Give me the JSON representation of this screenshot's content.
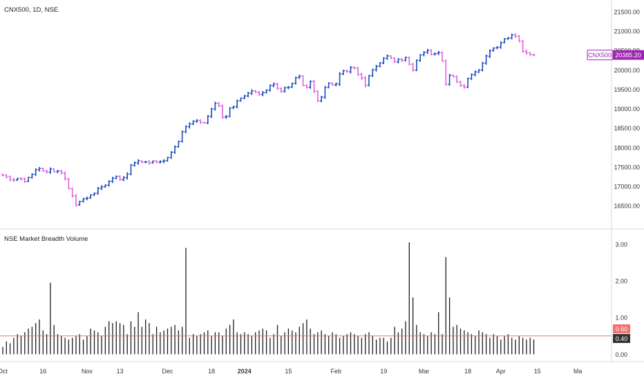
{
  "main_pane": {
    "symbol_label": "CNX500, 1D, NSE",
    "last_price_tag": {
      "name": "CNX500",
      "value": "20385.20",
      "color": "#9c27b0"
    }
  },
  "volume_pane": {
    "indicator_label": "NSE Market Breadth Volume",
    "reference_tag": {
      "value": "0.50",
      "color": "#f07070"
    },
    "last_value_tag": {
      "value": "0.40",
      "color": "#333333"
    }
  },
  "colors": {
    "up": "#1848b8",
    "down": "#e060e0",
    "volume": "#1a1a1a",
    "reference_line": "#f07070"
  },
  "time_axis": {
    "labels": [
      {
        "text": "Oct",
        "index": 0
      },
      {
        "text": "16",
        "index": 11
      },
      {
        "text": "Nov",
        "index": 23
      },
      {
        "text": "13",
        "index": 32
      },
      {
        "text": "Dec",
        "index": 45
      },
      {
        "text": "18",
        "index": 57
      },
      {
        "text": "2024",
        "index": 66,
        "bold": true
      },
      {
        "text": "15",
        "index": 78
      },
      {
        "text": "Feb",
        "index": 91
      },
      {
        "text": "19",
        "index": 104
      },
      {
        "text": "Mar",
        "index": 115
      },
      {
        "text": "18",
        "index": 127
      },
      {
        "text": "Apr",
        "index": 136
      },
      {
        "text": "15",
        "index": 146
      },
      {
        "text": "Ma",
        "index": 157
      }
    ]
  },
  "chart_data": [
    {
      "type": "ohlc",
      "title": "CNX500, 1D, NSE",
      "y_axis_ticks": [
        "16500.00",
        "17000.00",
        "17500.00",
        "18000.00",
        "18500.00",
        "19000.00",
        "19500.00",
        "20000.00",
        "20500.00",
        "21000.00",
        "21500.00"
      ],
      "ylim": [
        15900,
        21800
      ],
      "close": [
        17280,
        17240,
        17170,
        17160,
        17200,
        17190,
        17130,
        17230,
        17310,
        17430,
        17460,
        17400,
        17370,
        17450,
        17380,
        17400,
        17350,
        17200,
        16950,
        16750,
        16520,
        16610,
        16680,
        16700,
        16780,
        16820,
        16950,
        16990,
        17030,
        17130,
        17210,
        17260,
        17180,
        17230,
        17320,
        17550,
        17610,
        17660,
        17620,
        17630,
        17600,
        17650,
        17620,
        17640,
        17660,
        17740,
        17880,
        18020,
        18160,
        18410,
        18540,
        18610,
        18680,
        18700,
        18650,
        18640,
        18810,
        18990,
        19140,
        19070,
        18780,
        18800,
        19020,
        19050,
        19200,
        19270,
        19330,
        19400,
        19460,
        19430,
        19370,
        19420,
        19480,
        19600,
        19640,
        19530,
        19440,
        19540,
        19550,
        19650,
        19800,
        19840,
        19600,
        19550,
        19700,
        19450,
        19200,
        19300,
        19550,
        19660,
        19620,
        19640,
        19900,
        19980,
        19960,
        20060,
        20040,
        19880,
        19790,
        19600,
        19850,
        20000,
        20090,
        20180,
        20300,
        20360,
        20300,
        20210,
        20270,
        20250,
        20320,
        20150,
        20000,
        20250,
        20380,
        20450,
        20500,
        20400,
        20420,
        20450,
        20230,
        19630,
        19860,
        19830,
        19690,
        19600,
        19560,
        19780,
        19880,
        19950,
        20000,
        20180,
        20360,
        20490,
        20560,
        20580,
        20700,
        20800,
        20820,
        20900,
        20870,
        20740,
        20480,
        20440,
        20390,
        20385
      ],
      "bars_drawn_with_open_high_low": true
    },
    {
      "type": "bar",
      "title": "NSE Market Breadth Volume",
      "y_axis_ticks": [
        "0.00",
        "1.00",
        "2.00",
        "3.00"
      ],
      "ylim": [
        -0.2,
        3.3
      ],
      "reference_line": 0.5,
      "values": [
        0.2,
        0.35,
        0.3,
        0.45,
        0.55,
        0.5,
        0.6,
        0.7,
        0.75,
        0.85,
        0.95,
        0.65,
        0.55,
        1.95,
        0.8,
        0.55,
        0.5,
        0.45,
        0.4,
        0.45,
        0.5,
        0.55,
        0.4,
        0.5,
        0.7,
        0.65,
        0.6,
        0.5,
        0.75,
        0.9,
        0.85,
        0.9,
        0.85,
        0.8,
        0.55,
        0.9,
        0.75,
        1.15,
        0.75,
        0.95,
        0.85,
        0.55,
        0.75,
        0.6,
        0.65,
        0.7,
        0.75,
        0.8,
        0.65,
        0.75,
        2.9,
        0.45,
        0.55,
        0.5,
        0.55,
        0.6,
        0.65,
        0.5,
        0.6,
        0.6,
        0.5,
        0.7,
        0.8,
        0.95,
        0.6,
        0.55,
        0.6,
        0.55,
        0.5,
        0.6,
        0.65,
        0.7,
        0.65,
        0.45,
        0.55,
        0.8,
        0.5,
        0.6,
        0.7,
        0.65,
        0.6,
        0.75,
        0.85,
        0.95,
        0.7,
        0.55,
        0.6,
        0.65,
        0.55,
        0.5,
        0.6,
        0.55,
        0.45,
        0.5,
        0.55,
        0.6,
        0.55,
        0.5,
        0.45,
        0.55,
        0.6,
        0.5,
        0.4,
        0.45,
        0.45,
        0.35,
        0.45,
        0.75,
        0.6,
        0.7,
        0.9,
        3.05,
        1.55,
        0.8,
        0.6,
        0.55,
        0.5,
        0.6,
        0.55,
        1.15,
        0.55,
        2.65,
        1.55,
        0.75,
        0.8,
        0.7,
        0.65,
        0.6,
        0.55,
        0.5,
        0.65,
        0.6,
        0.55,
        0.45,
        0.55,
        0.5,
        0.4,
        0.5,
        0.55,
        0.45,
        0.4,
        0.5,
        0.45,
        0.4,
        0.45,
        0.4
      ]
    }
  ]
}
